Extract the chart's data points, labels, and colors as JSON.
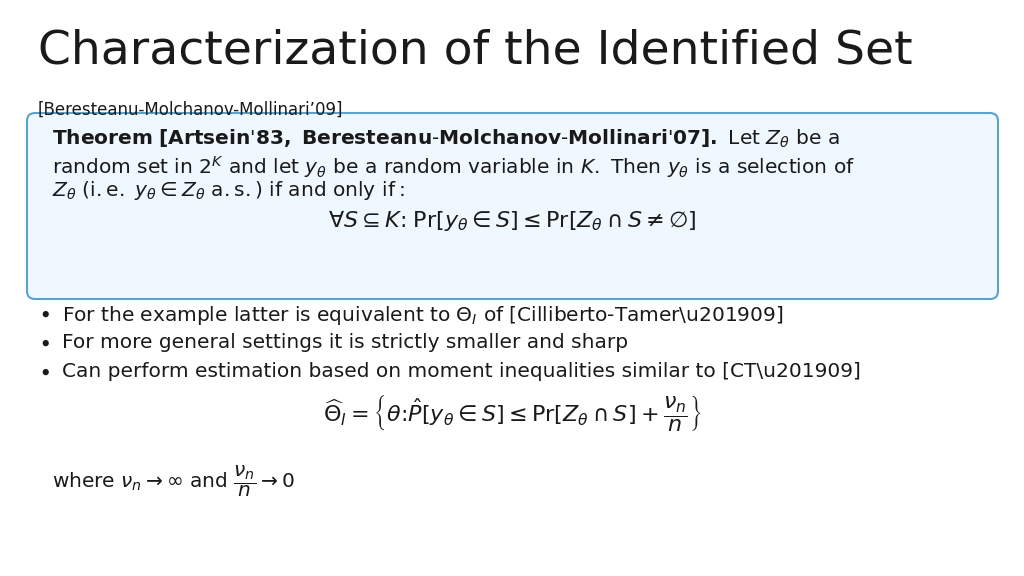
{
  "title": "Characterization of the Identified Set",
  "subtitle": "[Beresteanu-Molchanov-Mollinari’09]",
  "background_color": "#ffffff",
  "title_fontsize": 34,
  "subtitle_fontsize": 12,
  "text_color": "#1a1a1a",
  "box_border_color": "#5ba3c9",
  "box_bg_color": "#f0f8ff",
  "bullet_color": "#1a1a1a",
  "body_fontsize": 14.5,
  "formula_fontsize": 16
}
